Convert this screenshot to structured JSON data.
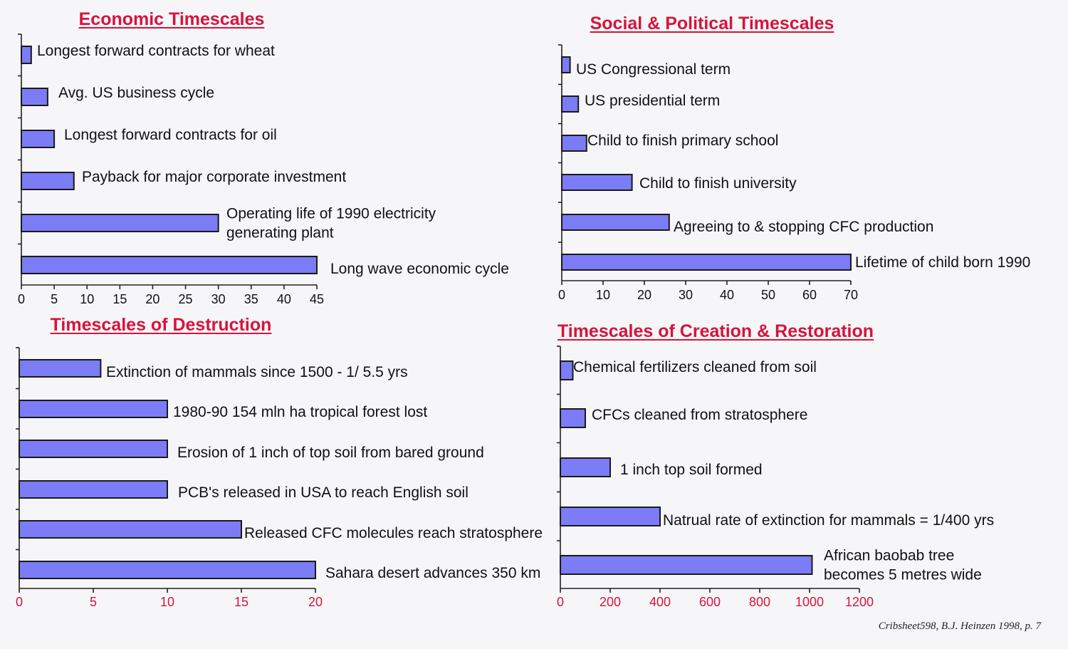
{
  "chart_data": [
    {
      "type": "bar",
      "orientation": "horizontal",
      "title": "Economic Timescales",
      "categories": [
        "Longest forward contracts for wheat",
        "Avg. US business cycle",
        "Longest forward contracts for oil",
        "Payback for major corporate investment",
        [
          "Operating life of 1990 electricity",
          "generating plant"
        ],
        "Long wave economic cycle"
      ],
      "values": [
        1.5,
        4,
        5,
        8,
        30,
        45
      ],
      "xlim": [
        0,
        45
      ],
      "ticks": [
        0,
        5,
        10,
        15,
        20,
        25,
        30,
        35,
        40,
        45
      ],
      "tick_color": "#111111",
      "title_color": "#d6143c",
      "bar_color": "#7b7cf6"
    },
    {
      "type": "bar",
      "orientation": "horizontal",
      "title": "Social & Political Timescales",
      "categories": [
        "US Congressional term",
        "US presidential term",
        "Child to finish primary school",
        "Child to finish university",
        "Agreeing to & stopping CFC production",
        "Lifetime of child born 1990"
      ],
      "values": [
        2,
        4,
        6,
        17,
        26,
        70
      ],
      "xlim": [
        0,
        70
      ],
      "ticks": [
        0,
        10,
        20,
        30,
        40,
        50,
        60,
        70
      ],
      "tick_color": "#111111",
      "title_color": "#d6143c",
      "bar_color": "#7b7cf6"
    },
    {
      "type": "bar",
      "orientation": "horizontal",
      "title": "Timescales of Destruction",
      "categories": [
        "Extinction of mammals since 1500 - 1/ 5.5 yrs",
        "1980-90 154 mln ha tropical forest lost",
        "Erosion of 1 inch of top soil from bared ground",
        "PCB's released in USA to reach English soil",
        "Released CFC molecules reach stratosphere",
        "Sahara desert advances 350 km"
      ],
      "values": [
        5.5,
        10,
        10,
        10,
        15,
        20
      ],
      "xlim": [
        0,
        20
      ],
      "ticks": [
        0,
        5,
        10,
        15,
        20
      ],
      "tick_color": "#d6143c",
      "title_color": "#d6143c",
      "bar_color": "#7b7cf6"
    },
    {
      "type": "bar",
      "orientation": "horizontal",
      "title": "Timescales of Creation & Restoration",
      "categories": [
        "Chemical fertilizers cleaned from soil",
        "CFCs cleaned from stratosphere",
        "1 inch top soil formed",
        "Natrual rate of extinction for mammals = 1/400 yrs",
        [
          "African baobab tree",
          "becomes 5 metres wide"
        ]
      ],
      "values": [
        50,
        100,
        200,
        400,
        1010
      ],
      "xlim": [
        0,
        1200
      ],
      "ticks": [
        0,
        200,
        400,
        600,
        800,
        1000,
        1200
      ],
      "tick_color": "#d6143c",
      "title_color": "#d6143c",
      "bar_color": "#7b7cf6"
    }
  ],
  "footer": {
    "credit": "Cribsheet598, B.J. Heinzen 1998, p. 7"
  }
}
